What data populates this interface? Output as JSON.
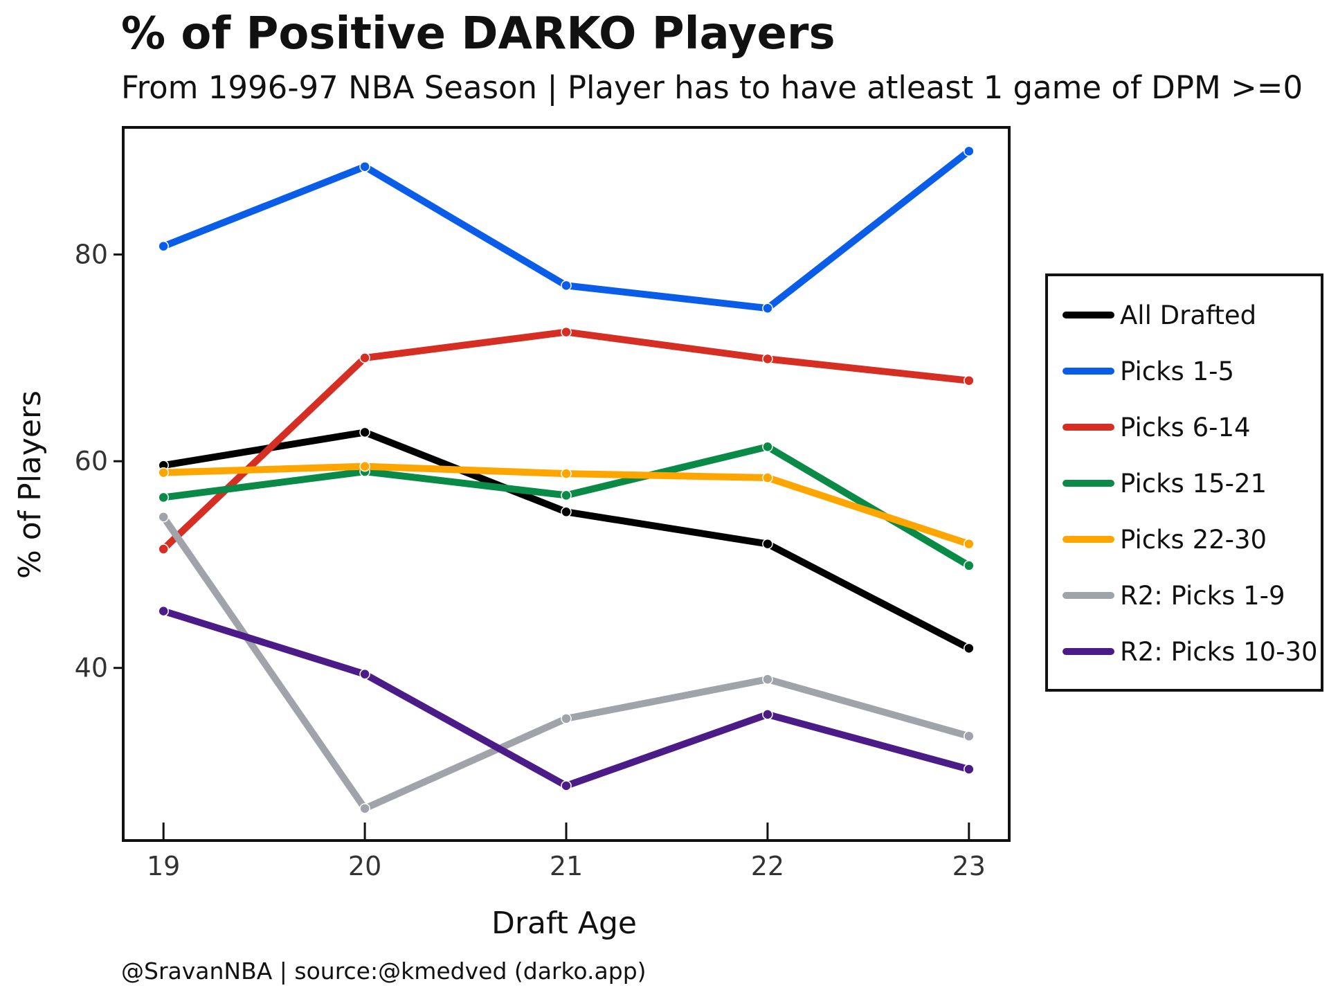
{
  "title": "% of Positive DARKO Players",
  "subtitle": "From 1996-97 NBA Season | Player has to have atleast 1 game of DPM >=0",
  "credit": "@SravanNBA | source:@kmedved (darko.app)",
  "chart_data": {
    "type": "line",
    "xlabel": "Draft Age",
    "ylabel": "% of Players",
    "x": [
      19,
      20,
      21,
      22,
      23
    ],
    "xticks": [
      "19",
      "20",
      "21",
      "22",
      "23"
    ],
    "yticks": [
      "40",
      "60",
      "80"
    ],
    "xlim": [
      18.8,
      23.2
    ],
    "ylim": [
      23.3,
      92.3
    ],
    "grid": false,
    "legend_position": "right",
    "series": [
      {
        "name": "All Drafted",
        "color": "#000000",
        "values": [
          59.6,
          62.8,
          55.1,
          52.0,
          41.9
        ]
      },
      {
        "name": "Picks 1-5",
        "color": "#0a5de8",
        "values": [
          80.8,
          88.5,
          77.0,
          74.8,
          90.0
        ]
      },
      {
        "name": "Picks 6-14",
        "color": "#d62e22",
        "values": [
          51.5,
          70.0,
          72.5,
          69.9,
          67.8
        ]
      },
      {
        "name": "Picks 15-21",
        "color": "#0a8a47",
        "values": [
          56.5,
          59.0,
          56.7,
          61.4,
          49.9
        ]
      },
      {
        "name": "Picks 22-30",
        "color": "#ffa500",
        "values": [
          58.9,
          59.5,
          58.8,
          58.4,
          52.0
        ]
      },
      {
        "name": "R2: Picks 1-9",
        "color": "#a0a4aa",
        "values": [
          54.6,
          26.4,
          35.1,
          38.9,
          33.4
        ]
      },
      {
        "name": "R2: Picks 10-30",
        "color": "#4b1c87",
        "values": [
          45.5,
          39.4,
          28.6,
          35.5,
          30.2
        ]
      }
    ]
  }
}
